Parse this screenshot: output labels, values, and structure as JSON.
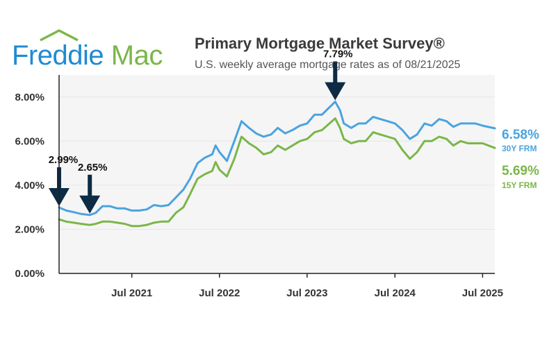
{
  "logo": {
    "part1": "Freddie",
    "part2": "Mac",
    "color_blue": "#1f8bd1",
    "color_green": "#7ab648"
  },
  "colors": {
    "frm30": "#4aa3df",
    "frm15": "#7ab648",
    "arrow": "#0d2b45",
    "grid": "#e6e6e6",
    "axis": "#222222"
  },
  "chart_data": {
    "type": "line",
    "title": "Primary Mortgage Market Survey®",
    "subtitle": "U.S. weekly average mortgage rates as of 08/21/2025",
    "xlabel": "",
    "ylabel": "",
    "xlim": [
      "2020-09-01",
      "2025-08-21"
    ],
    "ylim": [
      0,
      9
    ],
    "grid": true,
    "yticks": [
      0,
      2,
      4,
      6,
      8
    ],
    "ytick_labels": [
      "0.00%",
      "2.00%",
      "4.00%",
      "6.00%",
      "8.00%"
    ],
    "xticks": [
      "2021-07-01",
      "2022-07-01",
      "2023-07-01",
      "2024-07-01",
      "2025-07-01"
    ],
    "xtick_labels": [
      "Jul 2021",
      "Jul 2022",
      "Jul 2023",
      "Jul 2024",
      "Jul 2025"
    ],
    "series": [
      {
        "name": "30Y FRM",
        "end_label": "6.58%",
        "x": [
          "2020-09-01",
          "2020-10-01",
          "2020-11-01",
          "2020-12-01",
          "2021-01-07",
          "2021-02-01",
          "2021-03-01",
          "2021-04-01",
          "2021-05-01",
          "2021-06-01",
          "2021-07-01",
          "2021-08-01",
          "2021-09-01",
          "2021-10-01",
          "2021-11-01",
          "2021-12-01",
          "2022-01-01",
          "2022-02-01",
          "2022-03-01",
          "2022-04-01",
          "2022-05-01",
          "2022-06-01",
          "2022-06-15",
          "2022-07-01",
          "2022-08-01",
          "2022-09-01",
          "2022-10-01",
          "2022-11-01",
          "2022-12-01",
          "2023-01-01",
          "2023-02-01",
          "2023-03-01",
          "2023-04-01",
          "2023-05-01",
          "2023-06-01",
          "2023-07-01",
          "2023-08-01",
          "2023-09-01",
          "2023-10-26",
          "2023-11-15",
          "2023-12-01",
          "2024-01-01",
          "2024-02-01",
          "2024-03-01",
          "2024-04-01",
          "2024-05-01",
          "2024-06-01",
          "2024-07-01",
          "2024-08-01",
          "2024-09-01",
          "2024-10-01",
          "2024-11-01",
          "2024-12-01",
          "2025-01-01",
          "2025-02-01",
          "2025-03-01",
          "2025-04-01",
          "2025-05-01",
          "2025-06-01",
          "2025-07-01",
          "2025-08-21"
        ],
        "values": [
          2.99,
          2.85,
          2.78,
          2.7,
          2.65,
          2.75,
          3.05,
          3.05,
          2.95,
          2.95,
          2.85,
          2.85,
          2.9,
          3.1,
          3.05,
          3.1,
          3.45,
          3.8,
          4.3,
          5.0,
          5.25,
          5.4,
          5.8,
          5.5,
          5.1,
          6.0,
          6.9,
          6.6,
          6.35,
          6.2,
          6.3,
          6.6,
          6.35,
          6.5,
          6.7,
          6.8,
          7.2,
          7.2,
          7.79,
          7.4,
          6.8,
          6.6,
          6.8,
          6.8,
          7.1,
          7.0,
          6.9,
          6.8,
          6.5,
          6.1,
          6.3,
          6.8,
          6.7,
          7.0,
          6.9,
          6.65,
          6.8,
          6.8,
          6.8,
          6.7,
          6.58
        ]
      },
      {
        "name": "15Y FRM",
        "end_label": "5.69%",
        "x": [
          "2020-09-01",
          "2020-10-01",
          "2020-11-01",
          "2020-12-01",
          "2021-01-07",
          "2021-02-01",
          "2021-03-01",
          "2021-04-01",
          "2021-05-01",
          "2021-06-01",
          "2021-07-01",
          "2021-08-01",
          "2021-09-01",
          "2021-10-01",
          "2021-11-01",
          "2021-12-01",
          "2022-01-01",
          "2022-02-01",
          "2022-03-01",
          "2022-04-01",
          "2022-05-01",
          "2022-06-01",
          "2022-06-15",
          "2022-07-01",
          "2022-08-01",
          "2022-09-01",
          "2022-10-01",
          "2022-11-01",
          "2022-12-01",
          "2023-01-01",
          "2023-02-01",
          "2023-03-01",
          "2023-04-01",
          "2023-05-01",
          "2023-06-01",
          "2023-07-01",
          "2023-08-01",
          "2023-09-01",
          "2023-10-26",
          "2023-11-15",
          "2023-12-01",
          "2024-01-01",
          "2024-02-01",
          "2024-03-01",
          "2024-04-01",
          "2024-05-01",
          "2024-06-01",
          "2024-07-01",
          "2024-08-01",
          "2024-09-01",
          "2024-10-01",
          "2024-11-01",
          "2024-12-01",
          "2025-01-01",
          "2025-02-01",
          "2025-03-01",
          "2025-04-01",
          "2025-05-01",
          "2025-06-01",
          "2025-07-01",
          "2025-08-21"
        ],
        "values": [
          2.45,
          2.35,
          2.3,
          2.25,
          2.2,
          2.25,
          2.35,
          2.35,
          2.3,
          2.25,
          2.15,
          2.15,
          2.2,
          2.3,
          2.35,
          2.35,
          2.75,
          3.0,
          3.6,
          4.3,
          4.5,
          4.65,
          5.05,
          4.7,
          4.4,
          5.2,
          6.2,
          5.9,
          5.7,
          5.4,
          5.5,
          5.8,
          5.6,
          5.8,
          6.0,
          6.1,
          6.4,
          6.5,
          7.03,
          6.6,
          6.1,
          5.9,
          6.0,
          6.0,
          6.4,
          6.3,
          6.2,
          6.1,
          5.6,
          5.2,
          5.5,
          6.0,
          6.0,
          6.2,
          6.1,
          5.8,
          6.0,
          5.9,
          5.9,
          5.9,
          5.69
        ]
      }
    ],
    "annotations": [
      {
        "label": "2.99%",
        "x": "2020-09-01",
        "y": 2.99
      },
      {
        "label": "2.65%",
        "x": "2021-01-07",
        "y": 2.65
      },
      {
        "label": "7.79%",
        "x": "2023-10-26",
        "y": 7.79
      }
    ]
  }
}
